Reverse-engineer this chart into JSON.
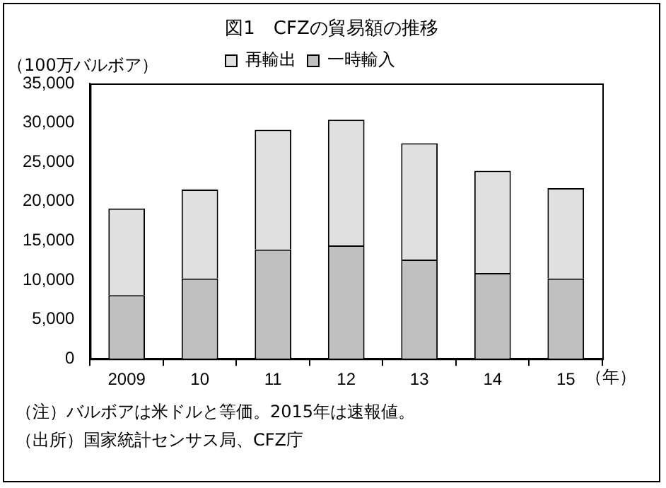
{
  "chart_data": {
    "type": "bar",
    "title": "図1　CFZの貿易額の推移",
    "ylabel": "（100万バルボア）",
    "xlabel": "（年）",
    "categories": [
      "2009",
      "10",
      "11",
      "12",
      "13",
      "14",
      "15"
    ],
    "stacked": true,
    "series": [
      {
        "name": "一時輸入",
        "color": "#c0c0c0",
        "values": [
          8100,
          10200,
          13900,
          14400,
          12600,
          10900,
          10200
        ]
      },
      {
        "name": "再輸出",
        "color": "#e0e0e0",
        "values": [
          11000,
          11300,
          15200,
          16000,
          14800,
          13000,
          11500
        ]
      }
    ],
    "ylim": [
      0,
      35000
    ],
    "yticks": [
      0,
      {
        "value": 5000,
        "label": "5,000"
      },
      {
        "value": 10000,
        "label": "10,000"
      },
      {
        "value": 15000,
        "label": "15,000"
      },
      {
        "value": 20000,
        "label": "20,000"
      },
      {
        "value": 25000,
        "label": "25,000"
      },
      {
        "value": 30000,
        "label": "30,000"
      },
      {
        "value": 35000,
        "label": "35,000"
      }
    ],
    "grid": false,
    "legend": "top",
    "annotations": [
      "（注）バルボアは米ドルと等価。2015年は速報値。",
      "（出所）国家統計センサス局、CFZ庁"
    ]
  }
}
